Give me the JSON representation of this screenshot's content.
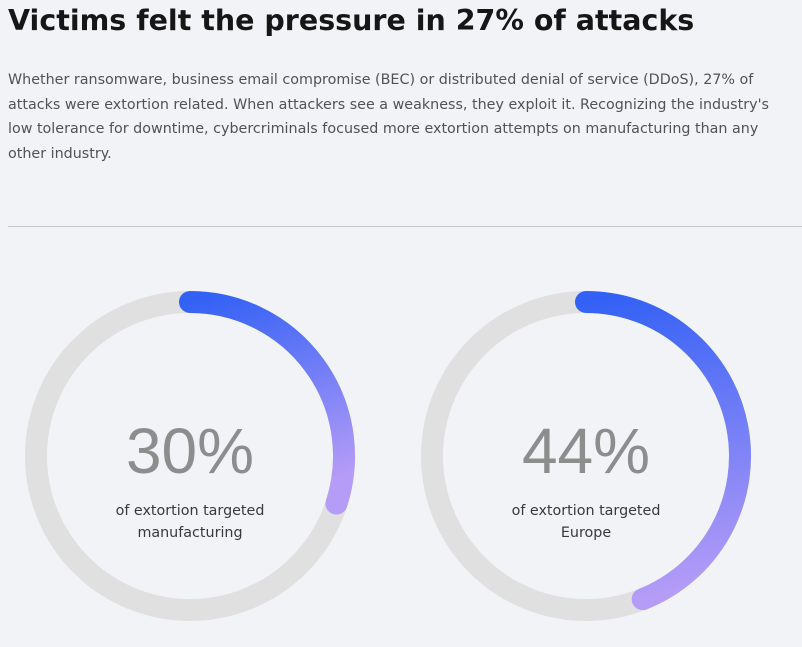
{
  "header": {
    "title": "Victims felt the pressure in 27% of attacks",
    "intro": "Whether ransomware, business email compromise (BEC) or distributed denial of service (DDoS), 27% of attacks were extortion related. When attackers see a weakness, they exploit it. Recognizing the industry's low tolerance for downtime, cybercriminals focused more extortion attempts on manufacturing than any other industry."
  },
  "colors": {
    "track": "#e0e0e0",
    "gradient_start": "#3361f5",
    "gradient_end": "#b59cf7",
    "value_text": "#8d8d8d"
  },
  "chart_data": [
    {
      "type": "pie",
      "style": "donut-progress",
      "value": 30,
      "value_label": "30%",
      "caption": "of extortion targeted manufacturing"
    },
    {
      "type": "pie",
      "style": "donut-progress",
      "value": 44,
      "value_label": "44%",
      "caption": "of extortion targeted Europe"
    }
  ]
}
